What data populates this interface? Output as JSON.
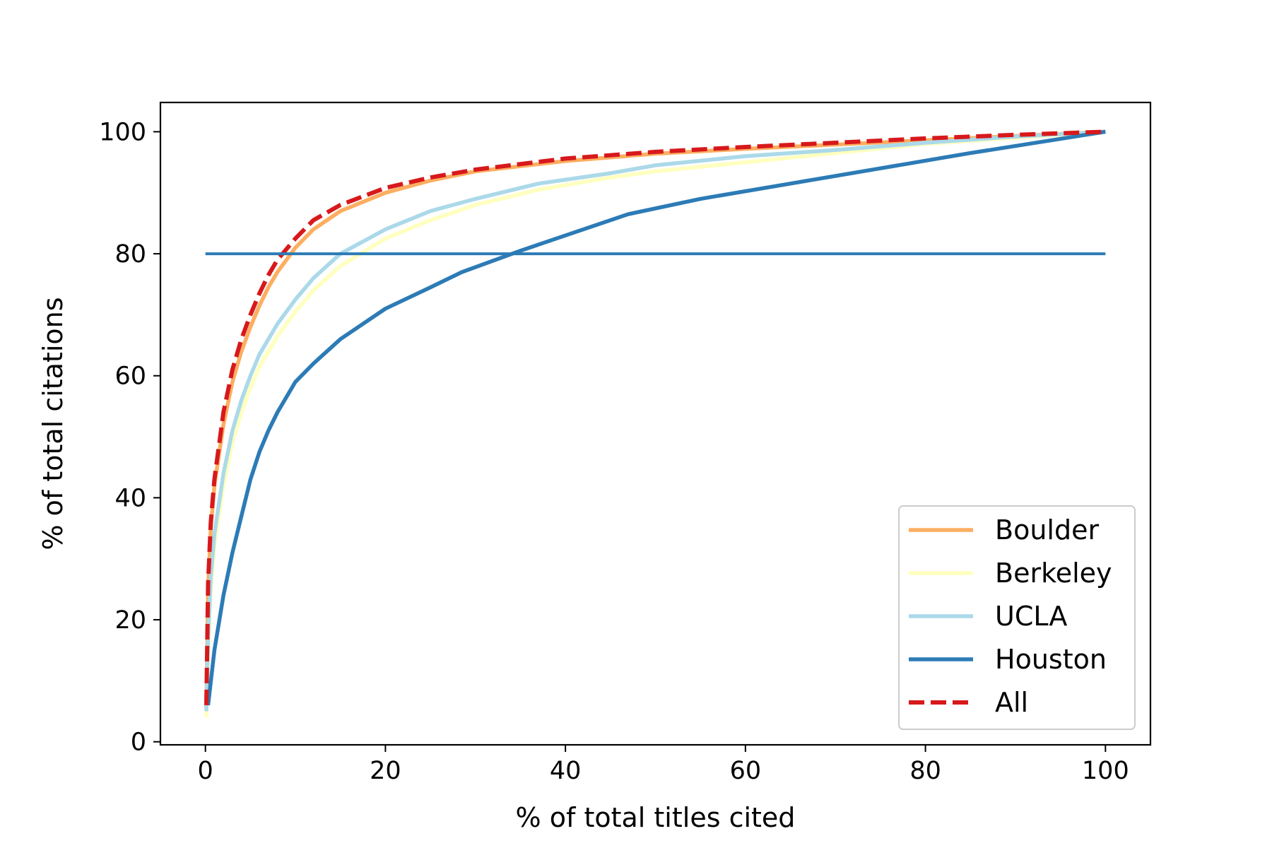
{
  "chart_data": {
    "type": "line",
    "title": "",
    "xlabel": "% of total titles cited",
    "ylabel": "% of total citations",
    "xlim": [
      -5,
      105
    ],
    "ylim": [
      -0.5,
      104.8
    ],
    "xticks": [
      0,
      20,
      40,
      60,
      80,
      100
    ],
    "yticks": [
      0,
      20,
      40,
      60,
      80,
      100
    ],
    "xtick_labels": [
      "0",
      "20",
      "40",
      "60",
      "80",
      "100"
    ],
    "ytick_labels": [
      "0",
      "20",
      "40",
      "60",
      "80",
      "100"
    ],
    "grid": false,
    "legend_position": "lower-right",
    "reference_line": {
      "y": 80,
      "x_start": 0,
      "x_end": 100,
      "color": "#2c7bb6"
    },
    "series": [
      {
        "name": "Boulder",
        "color": "#fdae61",
        "dash": "solid",
        "x": [
          0.1,
          0.3,
          0.6,
          1,
          2,
          3,
          4,
          5,
          6,
          7,
          8,
          10,
          12,
          15,
          20,
          25,
          30,
          40,
          50,
          60,
          70,
          80,
          90,
          100
        ],
        "y": [
          5.5,
          25,
          35,
          42,
          52,
          59,
          64,
          68,
          71.5,
          74.5,
          77,
          81,
          84,
          87,
          90,
          92,
          93.5,
          95.2,
          96.4,
          97.2,
          97.9,
          98.6,
          99.3,
          100
        ]
      },
      {
        "name": "Berkeley",
        "color": "#ffffbf",
        "dash": "solid",
        "x": [
          0.1,
          0.3,
          0.6,
          1,
          2,
          3,
          4,
          5,
          6,
          8,
          10,
          12,
          15,
          20,
          25,
          30,
          37,
          45,
          50,
          60,
          70,
          80,
          90,
          100
        ],
        "y": [
          4,
          15,
          25,
          32,
          42,
          49,
          54,
          58,
          61.5,
          66.5,
          70.5,
          74,
          78,
          82.5,
          85.5,
          88,
          90.5,
          92.5,
          93.5,
          95,
          96.5,
          98,
          99,
          100
        ]
      },
      {
        "name": "UCLA",
        "color": "#abd9e9",
        "dash": "solid",
        "x": [
          0.1,
          0.3,
          0.6,
          1,
          2,
          3,
          4,
          5,
          6,
          8,
          10,
          12,
          15,
          20,
          25,
          30,
          37,
          45,
          50,
          60,
          70,
          80,
          90,
          100
        ],
        "y": [
          5,
          17,
          27,
          34,
          44,
          51,
          56,
          60,
          63.5,
          68.5,
          72.5,
          76,
          80,
          84,
          87,
          89,
          91.5,
          93.2,
          94.5,
          96,
          97,
          98.2,
          99.2,
          100
        ]
      },
      {
        "name": "Houston",
        "color": "#2c7bb6",
        "dash": "solid",
        "x": [
          0.3,
          1,
          2,
          3,
          4,
          5,
          6,
          7,
          8,
          10,
          12,
          15,
          20,
          25,
          28.5,
          35,
          40,
          47,
          55,
          65,
          75,
          85,
          100
        ],
        "y": [
          6,
          15,
          24,
          31,
          37,
          43,
          47.5,
          51,
          54,
          59,
          62,
          66,
          71,
          74.5,
          77,
          80.5,
          83,
          86.5,
          89,
          91.5,
          94,
          96.5,
          100
        ]
      },
      {
        "name": "All",
        "color": "#d7191c",
        "dash": "dashed",
        "x": [
          0.1,
          0.3,
          0.6,
          1,
          2,
          3,
          4,
          5,
          6,
          7,
          8,
          10,
          12,
          15,
          20,
          25,
          30,
          40,
          50,
          60,
          70,
          80,
          90,
          100
        ],
        "y": [
          6,
          26,
          36,
          43,
          54,
          61,
          66,
          70,
          73.5,
          76.5,
          79,
          82.5,
          85.5,
          88,
          90.8,
          92.5,
          93.8,
          95.6,
          96.7,
          97.5,
          98.2,
          98.9,
          99.5,
          100
        ]
      }
    ]
  }
}
